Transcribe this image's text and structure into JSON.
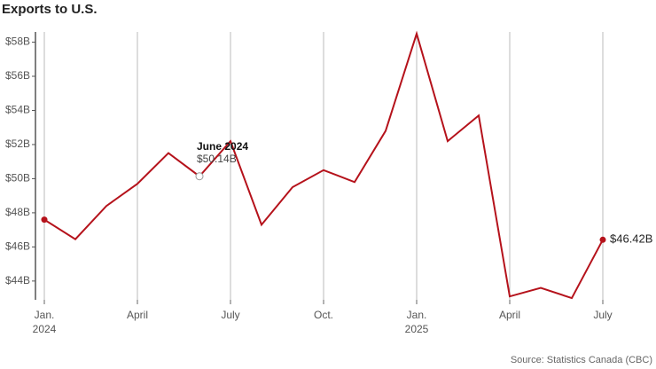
{
  "chart_data": {
    "type": "line",
    "title": "Exports to U.S.",
    "source": "Source: Statistics Canada (CBC)",
    "categories": [
      "Jan.",
      null,
      null,
      "April",
      null,
      null,
      "July",
      null,
      null,
      "Oct.",
      null,
      null,
      "Jan.",
      null,
      null,
      "April",
      null,
      null,
      "July"
    ],
    "category_years": [
      "2024",
      null,
      null,
      null,
      null,
      null,
      null,
      null,
      null,
      null,
      null,
      null,
      "2025",
      null,
      null,
      null,
      null,
      null,
      null
    ],
    "series": [
      {
        "name": "Exports to U.S.",
        "color": "#b5121b",
        "values": [
          47.6,
          46.45,
          48.4,
          49.7,
          51.5,
          50.14,
          52.2,
          47.3,
          49.5,
          50.5,
          49.8,
          52.8,
          58.5,
          52.2,
          53.7,
          43.1,
          43.6,
          43.0,
          46.42
        ],
        "value_labels": [
          null,
          null,
          null,
          null,
          null,
          "$50.14B",
          null,
          null,
          null,
          null,
          null,
          null,
          null,
          null,
          null,
          null,
          null,
          null,
          "$46.42B"
        ]
      }
    ],
    "annotation": "June 2024",
    "ylim": [
      42.9,
      58.6
    ],
    "yticks": [
      {
        "value": 44,
        "label": "$44B"
      },
      {
        "value": 46,
        "label": "$46B"
      },
      {
        "value": 48,
        "label": "$48B"
      },
      {
        "value": 50,
        "label": "$50B"
      },
      {
        "value": 52,
        "label": "$52B"
      },
      {
        "value": 54,
        "label": "$54B"
      },
      {
        "value": 56,
        "label": "$56B"
      },
      {
        "value": 58,
        "label": "$58B"
      }
    ],
    "grid": true
  }
}
